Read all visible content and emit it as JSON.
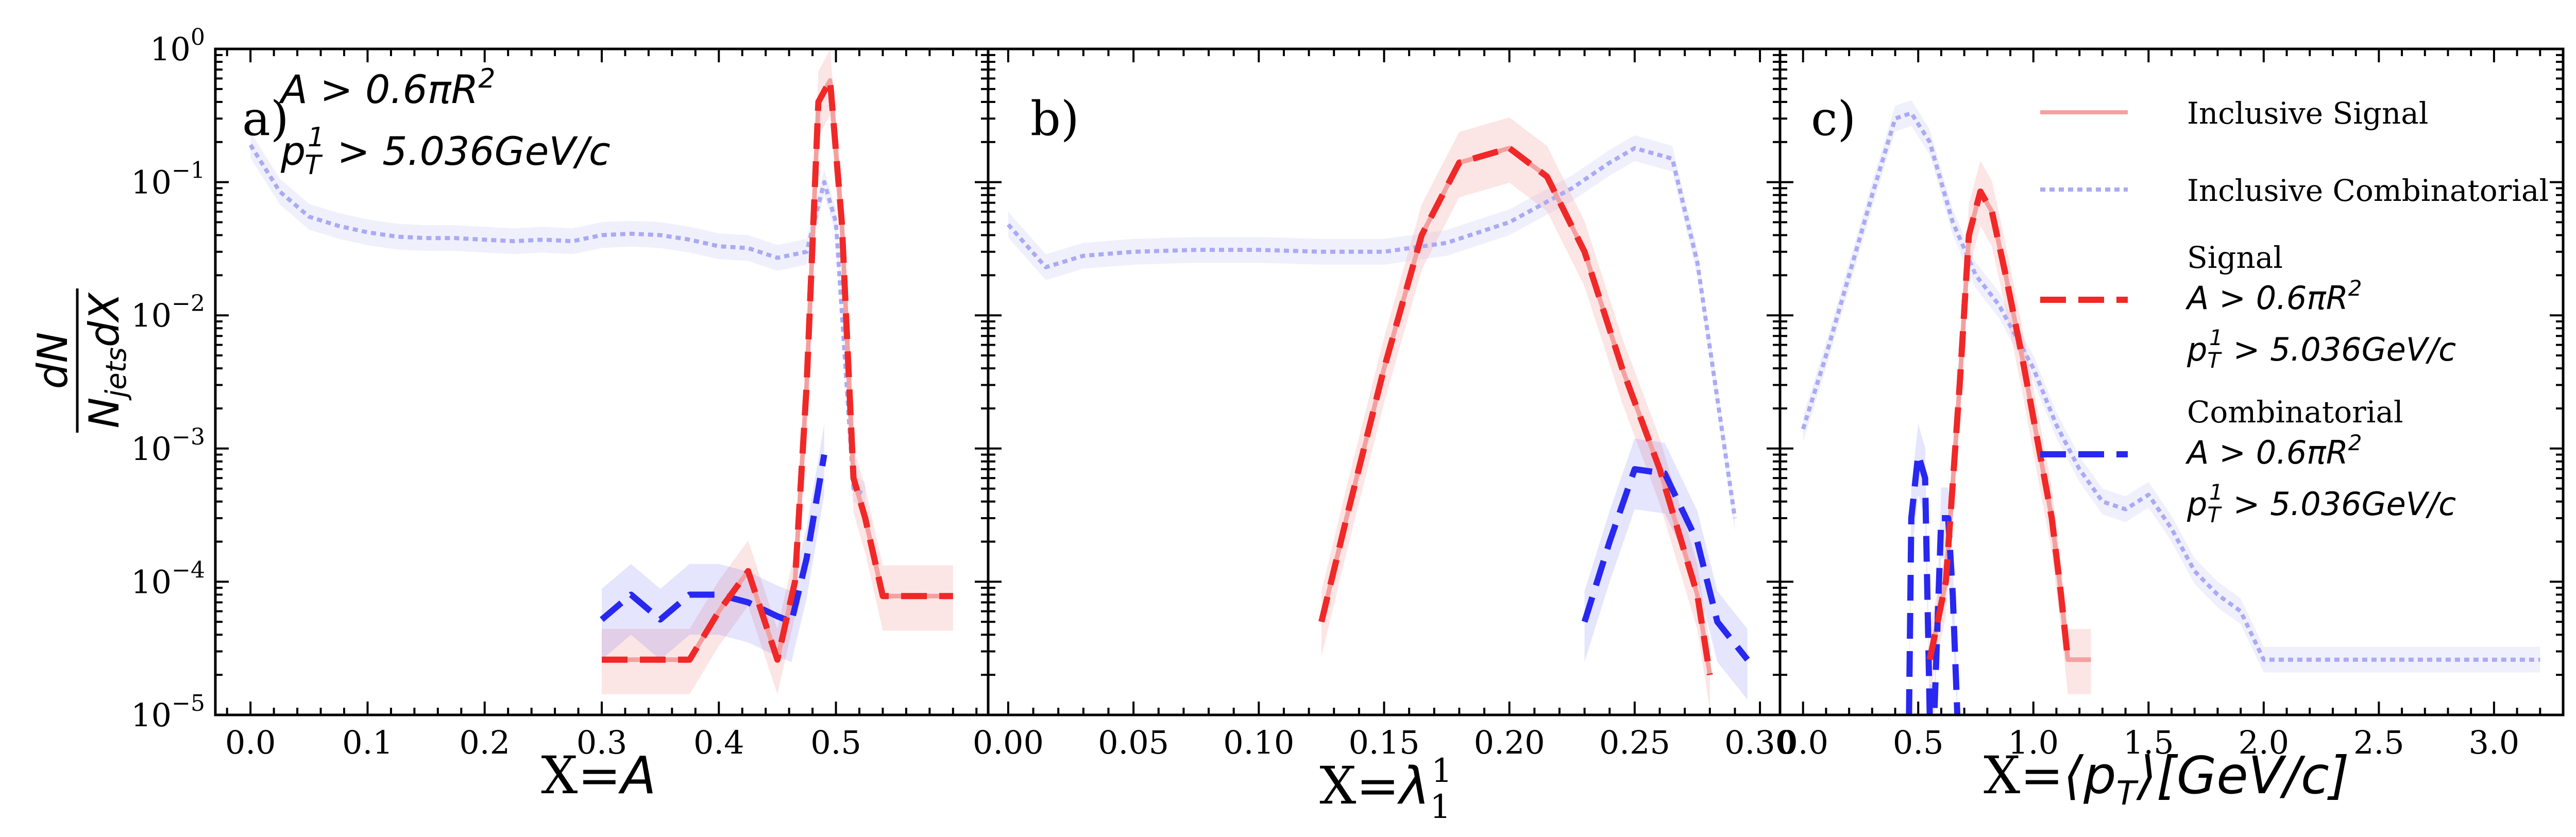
{
  "chart_data": {
    "type": "line",
    "y_scale": "log",
    "ylim": [
      1e-05,
      1
    ],
    "y_tick_values": [
      1e-05,
      0.0001,
      0.001,
      0.01,
      0.1,
      1
    ],
    "y_label": {
      "numerator": "dN",
      "denominator": "N",
      "denominator_sub": "jets",
      "denominator_tail": "dX"
    },
    "legend": [
      {
        "name": "Inclusive Signal",
        "label": "Inclusive Signal",
        "color": "#f4a0a0",
        "dash": "solid"
      },
      {
        "name": "Inclusive Combinatorial",
        "label": "Inclusive Combinatorial",
        "color": "#aaaaf4",
        "dash": "dotted"
      },
      {
        "name": "Signal",
        "label": "Signal",
        "cut1": "A > 0.6πR",
        "cut1_sup": "2",
        "cut2": "p",
        "cut2_sub": "T",
        "cut2_sup": "1",
        "cut2_tail": " > 5.036GeV/c",
        "color": "#f02828",
        "dash": "dashed"
      },
      {
        "name": "Combinatorial",
        "label": "Combinatorial",
        "cut1": "A > 0.6πR",
        "cut1_sup": "2",
        "cut2": "p",
        "cut2_sub": "T",
        "cut2_sup": "1",
        "cut2_tail": " > 5.036GeV/c",
        "color": "#2828f0",
        "dash": "dashed"
      }
    ],
    "panels": [
      {
        "id": "a",
        "panel_label": "a)",
        "annotation": {
          "line1": "A > 0.6πR",
          "line1_sup": "2",
          "line2": "p",
          "line2_sub": "T",
          "line2_sup": "1",
          "line2_tail": " > 5.036GeV/c"
        },
        "xlabel_prefix": "X=",
        "xlabel_var": "A",
        "xlim": [
          -0.03,
          0.63
        ],
        "x_ticks": [
          {
            "value": 0.0,
            "label": "0.0"
          },
          {
            "value": 0.1,
            "label": "0.1"
          },
          {
            "value": 0.2,
            "label": "0.2"
          },
          {
            "value": 0.3,
            "label": "0.3"
          },
          {
            "value": 0.4,
            "label": "0.4"
          },
          {
            "value": 0.5,
            "label": "0.5"
          }
        ],
        "series": [
          {
            "name": "Inclusive Combinatorial",
            "x": [
              0.0,
              0.025,
              0.05,
              0.075,
              0.1,
              0.125,
              0.15,
              0.175,
              0.2,
              0.225,
              0.25,
              0.275,
              0.3,
              0.325,
              0.35,
              0.375,
              0.4,
              0.425,
              0.45,
              0.475,
              0.49,
              0.5,
              0.515,
              0.525
            ],
            "y": [
              0.19,
              0.085,
              0.055,
              0.047,
              0.042,
              0.039,
              0.038,
              0.038,
              0.037,
              0.036,
              0.037,
              0.036,
              0.04,
              0.041,
              0.04,
              0.037,
              0.033,
              0.032,
              0.027,
              0.03,
              0.1,
              0.05,
              0.0005,
              0.00045
            ]
          },
          {
            "name": "Inclusive Signal",
            "x": [
              0.3,
              0.325,
              0.35,
              0.375,
              0.4,
              0.425,
              0.45,
              0.465,
              0.475,
              0.485,
              0.495,
              0.505,
              0.515,
              0.525,
              0.54,
              0.56,
              0.58,
              0.6
            ],
            "y": [
              2.6e-05,
              2.6e-05,
              2.6e-05,
              2.6e-05,
              6e-05,
              0.00012,
              2.6e-05,
              0.0001,
              0.003,
              0.4,
              0.58,
              0.05,
              0.0006,
              0.0003,
              7.8e-05,
              7.8e-05,
              7.8e-05,
              7.8e-05
            ]
          },
          {
            "name": "Signal",
            "x": [
              0.3,
              0.325,
              0.35,
              0.375,
              0.4,
              0.425,
              0.45,
              0.465,
              0.475,
              0.485,
              0.495,
              0.505,
              0.515,
              0.525,
              0.54,
              0.56,
              0.58,
              0.6
            ],
            "y": [
              2.6e-05,
              2.6e-05,
              2.6e-05,
              2.6e-05,
              6e-05,
              0.00012,
              2.6e-05,
              0.0001,
              0.003,
              0.4,
              0.58,
              0.05,
              0.0006,
              0.0003,
              7.8e-05,
              7.8e-05,
              7.8e-05,
              7.8e-05
            ]
          },
          {
            "name": "Combinatorial",
            "x": [
              0.3,
              0.325,
              0.35,
              0.375,
              0.4,
              0.425,
              0.45,
              0.462,
              0.475,
              0.49
            ],
            "y": [
              5.2e-05,
              8e-05,
              5.2e-05,
              8e-05,
              8e-05,
              7e-05,
              5.5e-05,
              5e-05,
              0.00015,
              0.0009
            ]
          }
        ]
      },
      {
        "id": "b",
        "panel_label": "b)",
        "xlabel_prefix": "X=",
        "xlabel_var": "λ",
        "xlabel_sub": "1",
        "xlabel_sup": "1",
        "xlim": [
          -0.008,
          0.308
        ],
        "x_ticks": [
          {
            "value": 0.0,
            "label": "0.00"
          },
          {
            "value": 0.05,
            "label": "0.05"
          },
          {
            "value": 0.1,
            "label": "0.10"
          },
          {
            "value": 0.15,
            "label": "0.15"
          },
          {
            "value": 0.2,
            "label": "0.20"
          },
          {
            "value": 0.25,
            "label": "0.25"
          },
          {
            "value": 0.3,
            "label": "0.30"
          }
        ],
        "series": [
          {
            "name": "Inclusive Combinatorial",
            "x": [
              0.0,
              0.015,
              0.03,
              0.05,
              0.075,
              0.1,
              0.125,
              0.15,
              0.175,
              0.2,
              0.225,
              0.24,
              0.25,
              0.265,
              0.275,
              0.29
            ],
            "y": [
              0.048,
              0.023,
              0.028,
              0.03,
              0.031,
              0.031,
              0.03,
              0.03,
              0.035,
              0.05,
              0.09,
              0.14,
              0.18,
              0.15,
              0.025,
              0.0003
            ]
          },
          {
            "name": "Inclusive Signal",
            "x": [
              0.125,
              0.135,
              0.15,
              0.165,
              0.18,
              0.2,
              0.215,
              0.23,
              0.245,
              0.26,
              0.275,
              0.28
            ],
            "y": [
              5e-05,
              0.0003,
              0.004,
              0.04,
              0.14,
              0.18,
              0.11,
              0.03,
              0.004,
              0.0007,
              8e-05,
              2e-05
            ]
          },
          {
            "name": "Signal",
            "x": [
              0.125,
              0.135,
              0.15,
              0.165,
              0.18,
              0.2,
              0.215,
              0.23,
              0.245,
              0.26,
              0.275,
              0.28
            ],
            "y": [
              5e-05,
              0.0003,
              0.004,
              0.04,
              0.14,
              0.18,
              0.11,
              0.03,
              0.004,
              0.0007,
              8e-05,
              2e-05
            ]
          },
          {
            "name": "Combinatorial",
            "x": [
              0.23,
              0.24,
              0.25,
              0.262,
              0.275,
              0.283,
              0.295
            ],
            "y": [
              5e-05,
              0.0002,
              0.0007,
              0.00065,
              0.0002,
              5e-05,
              2.6e-05
            ]
          }
        ]
      },
      {
        "id": "c",
        "panel_label": "c)",
        "xlabel_prefix": "X=",
        "xlabel_var": "⟨p",
        "xlabel_sub": "T",
        "xlabel_tail": "⟩[GeV/c]",
        "xlim": [
          -0.1,
          3.3
        ],
        "x_ticks": [
          {
            "value": 0.0,
            "label": "0.0"
          },
          {
            "value": 0.5,
            "label": "0.5"
          },
          {
            "value": 1.0,
            "label": "1.0"
          },
          {
            "value": 1.5,
            "label": "1.5"
          },
          {
            "value": 2.0,
            "label": "2.0"
          },
          {
            "value": 2.5,
            "label": "2.5"
          },
          {
            "value": 3.0,
            "label": "3.0"
          }
        ],
        "series": [
          {
            "name": "Inclusive Combinatorial",
            "x": [
              0.0,
              0.1,
              0.2,
              0.3,
              0.4,
              0.47,
              0.55,
              0.65,
              0.75,
              0.85,
              1.0,
              1.1,
              1.2,
              1.3,
              1.4,
              1.5,
              1.6,
              1.7,
              1.8,
              1.9,
              2.0,
              2.1,
              2.2,
              2.4,
              2.6,
              2.8,
              3.0,
              3.2
            ],
            "y": [
              0.0014,
              0.005,
              0.02,
              0.08,
              0.3,
              0.33,
              0.2,
              0.05,
              0.02,
              0.012,
              0.004,
              0.0015,
              0.0007,
              0.0004,
              0.00035,
              0.00045,
              0.00025,
              0.00012,
              8e-05,
              6e-05,
              2.6e-05,
              2.6e-05,
              2.6e-05,
              2.6e-05,
              2.6e-05,
              2.6e-05,
              2.6e-05,
              2.6e-05
            ]
          },
          {
            "name": "Inclusive Signal",
            "x": [
              0.55,
              0.62,
              0.68,
              0.72,
              0.77,
              0.82,
              0.88,
              0.95,
              1.02,
              1.08,
              1.12,
              1.15,
              1.2,
              1.25
            ],
            "y": [
              2.6e-05,
              0.0001,
              0.003,
              0.04,
              0.085,
              0.06,
              0.02,
              0.005,
              0.0011,
              0.0003,
              8e-05,
              2.6e-05,
              2.6e-05,
              2.6e-05
            ]
          },
          {
            "name": "Signal",
            "x": [
              0.55,
              0.62,
              0.68,
              0.72,
              0.77,
              0.82,
              0.88,
              0.95,
              1.02,
              1.08,
              1.12,
              1.15
            ],
            "y": [
              2.6e-05,
              0.0001,
              0.003,
              0.04,
              0.085,
              0.06,
              0.02,
              0.005,
              0.0011,
              0.0003,
              8e-05,
              2.6e-05
            ]
          },
          {
            "name": "Combinatorial",
            "x": [
              0.46,
              0.47,
              0.5,
              0.53,
              0.55,
              0.57,
              0.6,
              0.63,
              0.65,
              0.67
            ],
            "y": [
              1e-05,
              0.0003,
              0.0009,
              0.0006,
              1e-05,
              1e-05,
              0.0003,
              0.0003,
              8e-05,
              1e-05
            ]
          }
        ]
      }
    ]
  }
}
